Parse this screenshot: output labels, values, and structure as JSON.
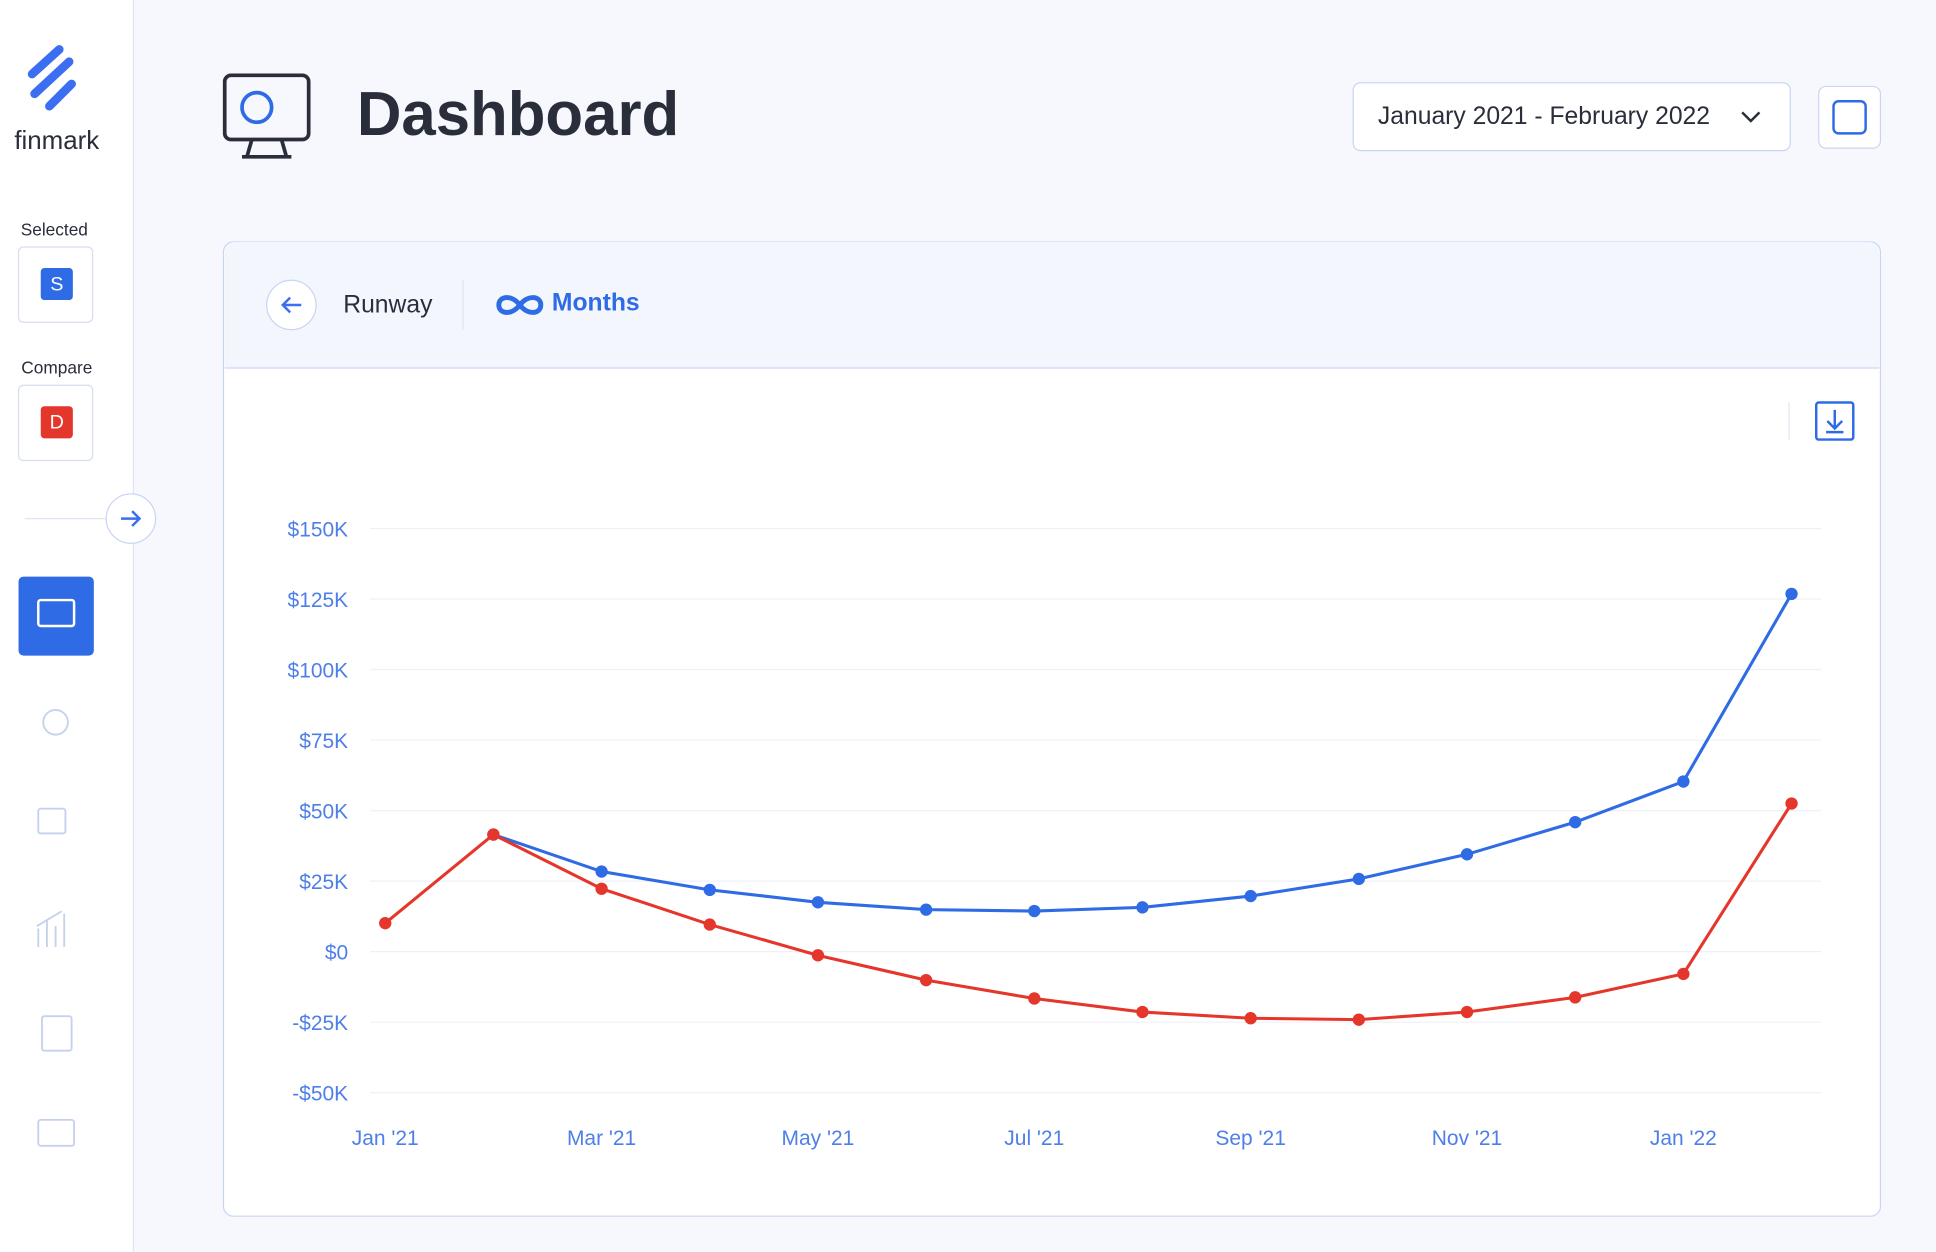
{
  "sidebar": {
    "brand": "finmark",
    "selected_label": "Selected",
    "selected_badge": "S",
    "compare_label": "Compare",
    "compare_badge": "D"
  },
  "header": {
    "title": "Dashboard",
    "date_range": "January 2021 - February 2022"
  },
  "tabs": {
    "back": "Runway",
    "current": "Months"
  },
  "chart_data": {
    "type": "line",
    "categories": [
      "Jan '21",
      null,
      "Mar '21",
      null,
      "May '21",
      null,
      "Jul '21",
      null,
      "Sep '21",
      null,
      "Nov '21",
      null,
      "Jan '22",
      null
    ],
    "series": [
      {
        "color": "#2f6be5",
        "values": [
          null,
          41500,
          28400,
          21900,
          17500,
          14900,
          14400,
          15700,
          19700,
          25800,
          34500,
          45900,
          60300,
          126800
        ]
      },
      {
        "color": "#e5362c",
        "values": [
          10100,
          41500,
          22300,
          9600,
          -1300,
          -10100,
          -16600,
          -21400,
          -23600,
          -24100,
          -21400,
          -16200,
          -7900,
          52500
        ]
      }
    ],
    "ylim": [
      -50000,
      150000
    ],
    "yticks": [
      {
        "value": -50000,
        "label": "-$50K"
      },
      {
        "value": -25000,
        "label": "-$25K"
      },
      {
        "value": 0,
        "label": "$0"
      },
      {
        "value": 25000,
        "label": "$25K"
      },
      {
        "value": 50000,
        "label": "$50K"
      },
      {
        "value": 75000,
        "label": "$75K"
      },
      {
        "value": 100000,
        "label": "$100K"
      },
      {
        "value": 125000,
        "label": "$125K"
      },
      {
        "value": 150000,
        "label": "$150K"
      }
    ],
    "grid": true
  }
}
